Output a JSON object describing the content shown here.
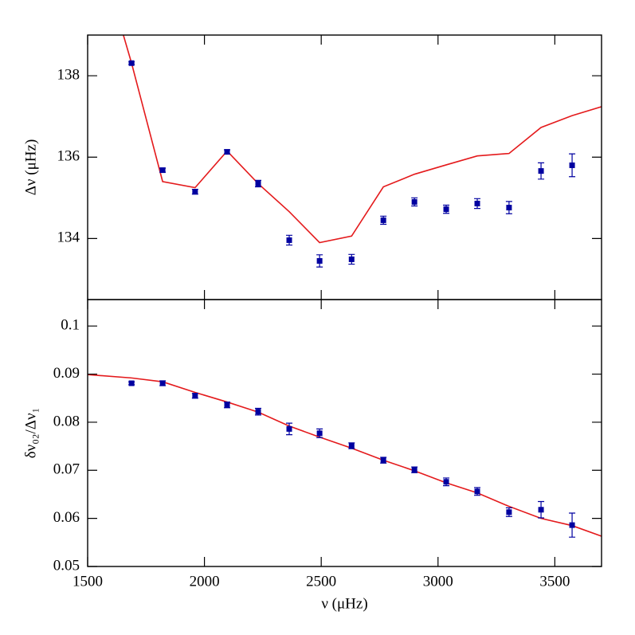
{
  "chart_data": [
    {
      "type": "scatter",
      "ylabel": "Δν (μHz)",
      "xlim": [
        1500,
        3700
      ],
      "xticks": [
        1500,
        2000,
        2500,
        3000,
        3500
      ],
      "show_xtick_labels": false,
      "ylim": [
        132.5,
        139
      ],
      "yticks": [
        134,
        136,
        138
      ],
      "series": [
        {
          "style": "line",
          "color": "#e41a1c",
          "x": [
            1653,
            1688,
            1821,
            1960,
            2097,
            2230,
            2363,
            2493,
            2630,
            2766,
            2899,
            3035,
            3168,
            3304,
            3441,
            3574,
            3700
          ],
          "values": [
            139.0,
            138.31,
            135.4,
            135.25,
            136.15,
            135.35,
            134.66,
            133.9,
            134.06,
            135.27,
            135.58,
            135.81,
            136.03,
            136.09,
            136.73,
            137.02,
            137.24
          ]
        },
        {
          "style": "points",
          "color": "#0000a0",
          "x": [
            1688,
            1821,
            1960,
            2097,
            2230,
            2363,
            2493,
            2630,
            2766,
            2899,
            3035,
            3168,
            3304,
            3441,
            3574
          ],
          "values": [
            138.31,
            135.68,
            135.15,
            136.13,
            135.35,
            133.96,
            133.45,
            133.49,
            134.45,
            134.9,
            134.72,
            134.86,
            134.76,
            135.66,
            135.8
          ],
          "errors": [
            0.03,
            0.05,
            0.06,
            0.05,
            0.08,
            0.12,
            0.15,
            0.12,
            0.1,
            0.1,
            0.1,
            0.12,
            0.15,
            0.2,
            0.28
          ]
        }
      ]
    },
    {
      "type": "scatter",
      "ylabel": "δν₀₂/Δν₁",
      "xlabel": "ν (μHz)",
      "xlim": [
        1500,
        3700
      ],
      "xticks": [
        1500,
        2000,
        2500,
        3000,
        3500
      ],
      "show_xtick_labels": true,
      "ylim": [
        0.05,
        0.1055
      ],
      "yticks": [
        0.05,
        0.06,
        0.07,
        0.08,
        0.09,
        0.1
      ],
      "series": [
        {
          "style": "line",
          "color": "#e41a1c",
          "x": [
            1500,
            1688,
            1821,
            1960,
            2097,
            2230,
            2363,
            2493,
            2630,
            2766,
            2899,
            3035,
            3168,
            3304,
            3441,
            3574,
            3700
          ],
          "values": [
            0.0899,
            0.0892,
            0.0884,
            0.0862,
            0.0842,
            0.0821,
            0.0792,
            0.0769,
            0.0746,
            0.0721,
            0.0699,
            0.0674,
            0.0653,
            0.0625,
            0.06,
            0.0585,
            0.0563
          ]
        },
        {
          "style": "points",
          "color": "#0000a0",
          "x": [
            1688,
            1821,
            1960,
            2097,
            2230,
            2363,
            2493,
            2630,
            2766,
            2899,
            3035,
            3168,
            3304,
            3441,
            3574
          ],
          "values": [
            0.0881,
            0.0881,
            0.0855,
            0.0836,
            0.0822,
            0.0786,
            0.0777,
            0.0751,
            0.0721,
            0.0701,
            0.0676,
            0.0656,
            0.0613,
            0.0618,
            0.0586
          ],
          "errors": [
            0.0003,
            0.0005,
            0.0005,
            0.0006,
            0.0007,
            0.0012,
            0.0009,
            0.0006,
            0.0006,
            0.0006,
            0.0008,
            0.0008,
            0.0009,
            0.0017,
            0.0025
          ]
        }
      ]
    }
  ]
}
